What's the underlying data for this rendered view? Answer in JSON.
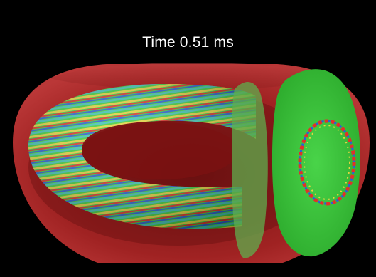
{
  "header": {
    "time_label": "Time 0.51 ms"
  },
  "colors": {
    "background": "#000000",
    "vessel": "#b42a2a",
    "plasma_green": "#3fd13f",
    "stripe_red": "#e0322a",
    "stripe_blue": "#2b5fd6",
    "stripe_yellow": "#e6d640",
    "stripe_cyan": "#42c7b8"
  }
}
